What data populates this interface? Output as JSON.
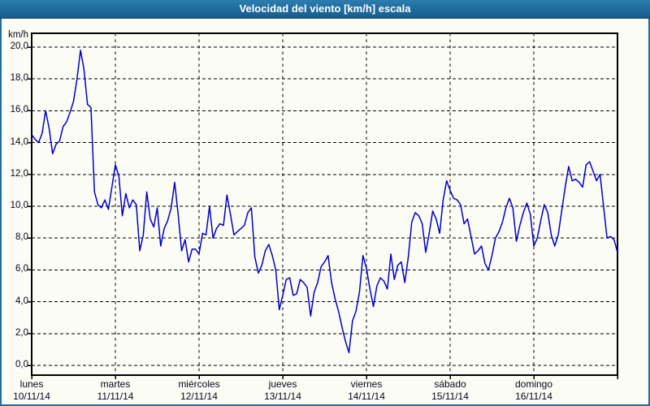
{
  "window": {
    "title": "Velocidad del viento [km/h] escala"
  },
  "colors": {
    "titlebar_top": "#2c7dae",
    "titlebar": "#1e6a9d",
    "titlebar_edge": "#0f4166",
    "frame_border": "#1f6c9f",
    "background": "#fbfcf4",
    "grid": "#000000",
    "plot_border": "#000000",
    "series_line": "#0000cd",
    "text": "#05051e"
  },
  "chart_data": {
    "type": "line",
    "title": "Velocidad del viento [km/h] escala",
    "ylabel": "km/h",
    "xlabel": "",
    "ylim": [
      0,
      20
    ],
    "ytick_step": 2,
    "ytick_labels": [
      "0,0",
      "2,0",
      "4,0",
      "6,0",
      "8,0",
      "10,0",
      "12,0",
      "14,0",
      "16,0",
      "18,0",
      "20,0"
    ],
    "grid": true,
    "legend": "none",
    "x_unit": "hours",
    "points_per_day": 24,
    "categories": [
      {
        "day": "lunes",
        "date": "10/11/14"
      },
      {
        "day": "martes",
        "date": "11/11/14"
      },
      {
        "day": "miércoles",
        "date": "12/11/14"
      },
      {
        "day": "jueves",
        "date": "13/11/14"
      },
      {
        "day": "viernes",
        "date": "14/11/14"
      },
      {
        "day": "sábado",
        "date": "15/11/14"
      },
      {
        "day": "domingo",
        "date": "16/11/14"
      }
    ],
    "series": [
      {
        "name": "Velocidad del viento",
        "color": "#0000cd",
        "values": [
          14.5,
          14.2,
          14.0,
          14.6,
          16.0,
          14.9,
          13.3,
          13.9,
          14.1,
          15.0,
          15.3,
          15.9,
          16.6,
          18.0,
          19.8,
          18.6,
          16.4,
          16.2,
          10.9,
          10.1,
          9.9,
          10.4,
          9.8,
          11.2,
          12.6,
          11.9,
          9.4,
          10.8,
          9.9,
          10.4,
          10.1,
          7.2,
          8.2,
          10.9,
          9.2,
          8.7,
          9.9,
          7.5,
          8.6,
          9.1,
          9.9,
          11.5,
          9.5,
          7.2,
          7.9,
          6.5,
          7.3,
          7.3,
          7.0,
          8.3,
          8.2,
          10.0,
          8.0,
          8.6,
          8.9,
          8.8,
          10.7,
          9.5,
          8.2,
          8.4,
          8.6,
          8.8,
          9.6,
          9.9,
          6.8,
          5.8,
          6.3,
          7.2,
          7.6,
          6.9,
          6.0,
          3.5,
          4.4,
          5.4,
          5.5,
          4.4,
          4.5,
          5.4,
          5.2,
          4.9,
          3.1,
          4.6,
          5.2,
          6.2,
          6.5,
          6.9,
          5.2,
          4.2,
          3.4,
          2.4,
          1.5,
          0.8,
          2.8,
          3.4,
          4.6,
          6.9,
          6.1,
          4.8,
          3.7,
          5.0,
          5.5,
          5.3,
          4.8,
          7.0,
          5.4,
          6.3,
          6.5,
          5.2,
          6.8,
          9.0,
          9.6,
          9.4,
          8.9,
          7.1,
          8.3,
          9.7,
          9.2,
          8.3,
          10.4,
          11.6,
          11.0,
          10.5,
          10.4,
          10.1,
          8.9,
          9.2,
          8.1,
          7.0,
          7.2,
          7.5,
          6.4,
          6.0,
          6.9,
          8.0,
          8.4,
          9.0,
          9.9,
          10.5,
          9.9,
          7.8,
          8.8,
          9.6,
          10.2,
          9.5,
          7.5,
          8.0,
          9.1,
          10.1,
          9.6,
          8.2,
          7.5,
          8.2,
          9.7,
          11.2,
          12.5,
          11.6,
          11.7,
          11.5,
          11.2,
          12.6,
          12.8,
          12.2,
          11.6,
          12.0,
          10.0,
          8.0,
          8.1,
          7.9,
          7.1
        ]
      }
    ]
  }
}
